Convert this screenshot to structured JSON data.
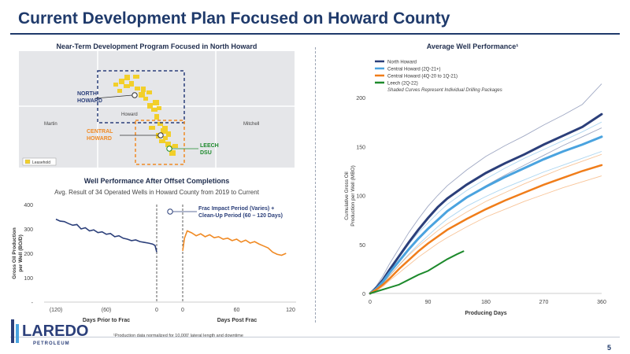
{
  "slide": {
    "title": "Current Development Plan Focused on Howard County",
    "page_number": "5",
    "footnote": "¹Production data normalized for 10,000' lateral length and downtime"
  },
  "logo": {
    "name": "LAREDO",
    "tagline": "PETROLEUM"
  },
  "map_panel": {
    "heading": "Near-Term Development Program Focused in North Howard",
    "labels": {
      "martin": "Martin",
      "howard": "Howard",
      "mitchell": "Mitchell",
      "north_howard": "NORTH\nHOWARD",
      "central_howard": "CENTRAL\nHOWARD",
      "leech": "LEECH\nDSU"
    },
    "legend": "Leasehold",
    "colors": {
      "leasehold": "#f2cf2a",
      "north_box": "#2b3f7a",
      "central_box": "#f08a24",
      "leech": "#1d8a2c"
    }
  },
  "offset_panel": {
    "heading": "Well Performance After Offset Completions",
    "subtitle": "Avg. Result of 34 Operated Wells in Howard County from 2019 to Current",
    "annotation": "Frac Impact Period (Varies) +\nClean-Up Period (60 – 120 Days)",
    "xlabel_left": "Days Prior to Frac",
    "xlabel_right": "Days Post Frac",
    "ylabel": "Gross Oil Production\nper Well (BO/D)"
  },
  "perf_panel": {
    "heading": "Average Well Performance¹",
    "legend_note": "Shaded Curves Represent Individual Drilling Packages"
  },
  "chart_data": [
    {
      "type": "line",
      "title": "Well Performance After Offset Completions",
      "ylabel": "Gross Oil Production per Well (BO/D)",
      "yticks": [
        "-",
        "100",
        "200",
        "300",
        "400"
      ],
      "ylim": [
        0,
        400
      ],
      "xticks_left": [
        "(120)",
        "(60)",
        "0"
      ],
      "xticks_right": [
        "0",
        "60",
        "120"
      ],
      "series": [
        {
          "name": "",
          "color": "#2b3f7a",
          "x": [
            -120,
            -115,
            -110,
            -105,
            -100,
            -95,
            -90,
            -85,
            -80,
            -75,
            -70,
            -65,
            -60,
            -55,
            -50,
            -45,
            -40,
            -35,
            -30,
            -25,
            -20,
            -15,
            -10,
            -5,
            -2,
            0
          ],
          "y": [
            340,
            332,
            330,
            322,
            315,
            318,
            300,
            305,
            292,
            296,
            285,
            288,
            278,
            281,
            268,
            272,
            262,
            258,
            252,
            255,
            248,
            245,
            242,
            238,
            232,
            205
          ]
        },
        {
          "name": "",
          "color": "#f08a24",
          "x": [
            0,
            2,
            5,
            10,
            15,
            20,
            25,
            30,
            35,
            40,
            45,
            50,
            55,
            60,
            65,
            70,
            75,
            80,
            85,
            90,
            95,
            100,
            105,
            110,
            115
          ],
          "y": [
            210,
            262,
            292,
            284,
            272,
            280,
            268,
            276,
            264,
            268,
            258,
            262,
            252,
            258,
            246,
            254,
            242,
            248,
            238,
            230,
            222,
            205,
            196,
            192,
            200
          ]
        }
      ]
    },
    {
      "type": "line",
      "title": "Average Well Performance",
      "xlabel": "Producing Days",
      "ylabel": "Cumulative Gross Oil Production per Well (MBO)",
      "xticks": [
        0,
        90,
        180,
        270,
        360
      ],
      "yticks": [
        0,
        50,
        100,
        150,
        200
      ],
      "xlim": [
        0,
        360
      ],
      "ylim": [
        0,
        200
      ],
      "series": [
        {
          "name": "North Howard",
          "color": "#2b3f7a",
          "width": 3,
          "x": [
            0,
            10,
            20,
            30,
            45,
            60,
            75,
            90,
            105,
            120,
            150,
            180,
            210,
            240,
            270,
            300,
            330,
            360
          ],
          "y": [
            0,
            6,
            14,
            24,
            38,
            52,
            65,
            77,
            88,
            97,
            111,
            123,
            133,
            142,
            152,
            161,
            170,
            183
          ]
        },
        {
          "name": "Central Howard (2Q-21+)",
          "color": "#4aa3df",
          "width": 3,
          "x": [
            0,
            10,
            20,
            30,
            45,
            60,
            75,
            90,
            105,
            120,
            150,
            180,
            210,
            240,
            270,
            300,
            330,
            360
          ],
          "y": [
            0,
            5,
            12,
            21,
            33,
            45,
            56,
            66,
            75,
            84,
            98,
            109,
            119,
            128,
            137,
            145,
            152,
            160
          ]
        },
        {
          "name": "Central Howard (4Q-20 to 1Q-21)",
          "color": "#f07d1a",
          "width": 2.5,
          "x": [
            0,
            10,
            20,
            30,
            45,
            60,
            75,
            90,
            105,
            120,
            150,
            180,
            210,
            240,
            270,
            300,
            330,
            360
          ],
          "y": [
            0,
            4,
            9,
            15,
            25,
            34,
            43,
            51,
            58,
            65,
            76,
            86,
            95,
            103,
            111,
            118,
            125,
            131
          ]
        },
        {
          "name": "Leech (2Q-22)",
          "color": "#1d8a2c",
          "width": 2,
          "x": [
            0,
            15,
            30,
            45,
            60,
            75,
            90,
            105,
            120,
            135,
            145
          ],
          "y": [
            0,
            3,
            6,
            9,
            14,
            19,
            23,
            29,
            35,
            40,
            43
          ]
        }
      ],
      "shaded": [
        {
          "color": "#2b3f7a",
          "y": [
            0,
            8,
            18,
            30,
            46,
            62,
            76,
            89,
            100,
            110,
            126,
            140,
            151,
            161,
            172,
            182,
            193,
            214
          ]
        },
        {
          "color": "#2b3f7a",
          "y": [
            0,
            5,
            12,
            21,
            33,
            45,
            56,
            66,
            75,
            84,
            98,
            110,
            121,
            131,
            141,
            151,
            160,
            169
          ]
        },
        {
          "color": "#4aa3df",
          "y": [
            0,
            6,
            14,
            24,
            37,
            50,
            62,
            72,
            82,
            91,
            105,
            117,
            128,
            138,
            147,
            156,
            165,
            175
          ]
        },
        {
          "color": "#4aa3df",
          "y": [
            0,
            4,
            10,
            18,
            29,
            40,
            50,
            59,
            68,
            76,
            89,
            99,
            108,
            116,
            124,
            131,
            138,
            145
          ]
        },
        {
          "color": "#f07d1a",
          "y": [
            0,
            5,
            11,
            18,
            29,
            39,
            48,
            56,
            64,
            71,
            83,
            94,
            103,
            112,
            120,
            128,
            135,
            142
          ]
        },
        {
          "color": "#f07d1a",
          "y": [
            0,
            3,
            7,
            13,
            21,
            29,
            37,
            44,
            51,
            57,
            68,
            78,
            86,
            94,
            101,
            108,
            114,
            120
          ]
        }
      ]
    }
  ]
}
